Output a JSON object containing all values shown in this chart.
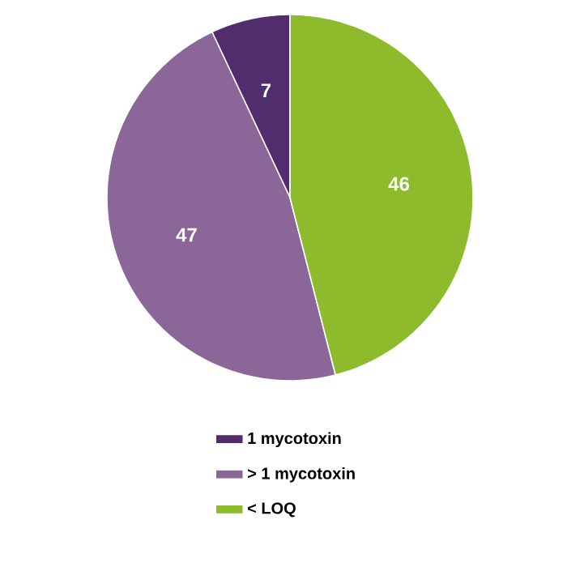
{
  "chart_data": {
    "type": "pie",
    "categories": [
      "1 mycotoxin",
      "> 1 mycotoxin",
      "< LOQ"
    ],
    "values": [
      7,
      47,
      46
    ],
    "colors": [
      "#512d6d",
      "#8a6699",
      "#8dbb2c"
    ],
    "data_labels": true,
    "legend": "bottom"
  }
}
